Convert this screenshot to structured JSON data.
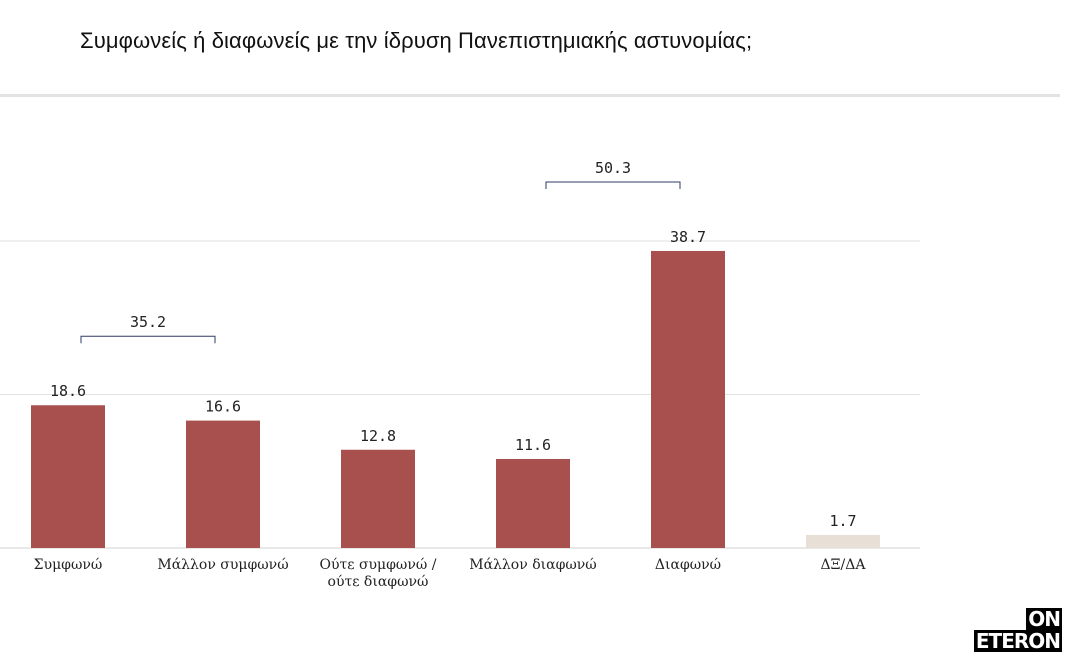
{
  "title": "Συμφωνείς ή διαφωνείς με την ίδρυση Πανεπιστημιακής αστυνομίας;",
  "logo": {
    "line1": "ON",
    "line2": "ETERON"
  },
  "chart_data": {
    "type": "bar",
    "title": "Συμφωνείς ή διαφωνείς με την ίδρυση Πανεπιστημιακής αστυνομίας;",
    "categories": [
      "Συμφωνώ",
      "Μάλλον συμφωνώ",
      "Ούτε συμφωνώ / ούτε διαφωνώ",
      "Μάλλον διαφωνώ",
      "Διαφωνώ",
      "ΔΞ/ΔΑ"
    ],
    "category_lines": [
      [
        "Συμφωνώ"
      ],
      [
        "Μάλλον συμφωνώ"
      ],
      [
        "Ούτε συμφωνώ /",
        "ούτε διαφωνώ"
      ],
      [
        "Μάλλον διαφωνώ"
      ],
      [
        "Διαφωνώ"
      ],
      [
        "ΔΞ/ΔΑ"
      ]
    ],
    "values": [
      18.6,
      16.6,
      12.8,
      11.6,
      38.7,
      1.7
    ],
    "value_labels": [
      "18.6",
      "16.6",
      "12.8",
      "11.6",
      "38.7",
      "1.7"
    ],
    "colors": [
      "#a8504e",
      "#a8504e",
      "#a8504e",
      "#a8504e",
      "#a8504e",
      "#e8e0d6"
    ],
    "ylim": [
      0,
      40
    ],
    "gridlines": [
      0,
      20,
      40
    ],
    "grid": true,
    "brackets": [
      {
        "from": 0,
        "to": 1,
        "label": "35.2"
      },
      {
        "from": 3,
        "to": 4,
        "label": "50.3"
      }
    ],
    "bracket_color": "#2e3a66"
  }
}
